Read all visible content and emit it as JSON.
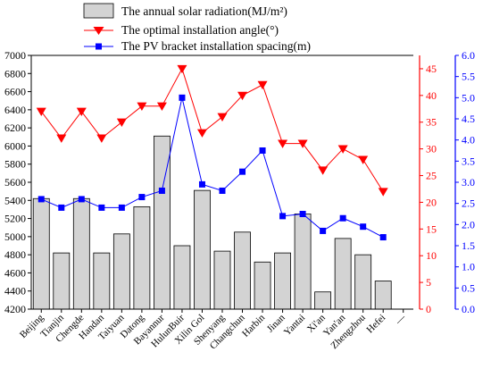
{
  "chart_data": {
    "type": "bar",
    "categories": [
      "Beijing",
      "Tianjin",
      "Chengde",
      "Handan",
      "Taiyuan",
      "Datong",
      "Bayannur",
      "HulunBuir",
      "Xilin Gol",
      "Shenyang",
      "Changchun",
      "Harbin",
      "Jinan",
      "Yantai",
      "Xi'an",
      "Yan'an",
      "Zhengzhou",
      "Hefei",
      "—"
    ],
    "series": [
      {
        "name": "The annual solar radiation(MJ/m²)",
        "chart": "bar",
        "axis": "left",
        "color": "#d3d3d3",
        "values": [
          5420,
          4820,
          5420,
          4820,
          5030,
          5330,
          6110,
          4900,
          5510,
          4840,
          5050,
          4720,
          4820,
          5250,
          4390,
          4980,
          4800,
          4510,
          null
        ]
      },
      {
        "name": "The optimal installation angle(°)",
        "chart": "line",
        "axis": "right1",
        "color": "#ff0000",
        "marker": "triangle-down",
        "values": [
          37,
          32,
          37,
          32,
          35,
          38,
          38,
          45,
          33,
          36,
          40,
          42,
          31,
          31,
          26,
          30,
          28,
          22,
          null
        ]
      },
      {
        "name": "The PV bracket installation spacing(m)",
        "chart": "line",
        "axis": "right2",
        "color": "#0000ff",
        "marker": "square",
        "values": [
          2.6,
          2.4,
          2.6,
          2.4,
          2.4,
          2.65,
          2.8,
          5.0,
          2.95,
          2.8,
          3.25,
          3.75,
          2.2,
          2.25,
          1.85,
          2.15,
          1.95,
          1.7,
          null
        ]
      }
    ],
    "axes": {
      "left": {
        "min": 4200,
        "max": 7000,
        "step": 200,
        "color": "#000000"
      },
      "right1": {
        "min": 0,
        "max": 47.5,
        "tick_step": 5,
        "color": "#ff0000"
      },
      "right2": {
        "min": 0,
        "max": 6.0,
        "tick_step": 0.5,
        "color": "#0000ff"
      }
    },
    "legend": {
      "placement": "top"
    }
  }
}
